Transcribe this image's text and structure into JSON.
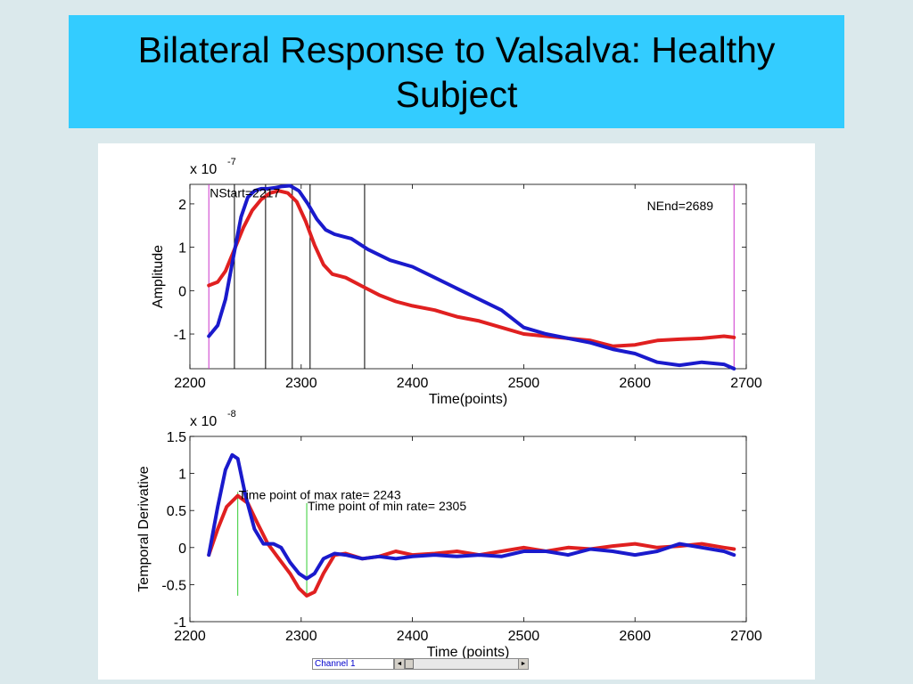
{
  "slide": {
    "title": "Bilateral Response to Valsalva: Healthy Subject"
  },
  "colors": {
    "background": "#dbe9ec",
    "title_band": "#33ccff",
    "left_series": "#e02020",
    "right_series": "#1a1acc",
    "marker_magenta": "#cc33cc",
    "marker_green": "#33cc33"
  },
  "controls": {
    "channel_label": "Channel 1",
    "left_arrow": "◄",
    "right_arrow": "►"
  },
  "chart_data": [
    {
      "type": "line",
      "xlabel": "Time(points)",
      "ylabel": "Amplitude",
      "scale_label": "x 10",
      "scale_exponent": "-7",
      "xlim": [
        2200,
        2700
      ],
      "ylim": [
        -1.8,
        2.45
      ],
      "xticks": [
        2200,
        2300,
        2400,
        2500,
        2600,
        2700
      ],
      "yticks": [
        -1,
        0,
        1,
        2
      ],
      "grid": false,
      "annotations": [
        {
          "text": "NStart=2217",
          "x": 2217,
          "y": 2.15
        },
        {
          "text": "NEnd=2689",
          "x": 2610,
          "y": 1.85
        }
      ],
      "vlines": [
        {
          "x": 2217,
          "color": "magenta"
        },
        {
          "x": 2689,
          "color": "magenta"
        },
        {
          "x": 2240,
          "color": "black"
        },
        {
          "x": 2268,
          "color": "black"
        },
        {
          "x": 2292,
          "color": "black"
        },
        {
          "x": 2308,
          "color": "black"
        },
        {
          "x": 2357,
          "color": "black"
        }
      ],
      "series": [
        {
          "color": "red",
          "x": [
            2217,
            2225,
            2232,
            2240,
            2248,
            2256,
            2264,
            2272,
            2280,
            2288,
            2296,
            2304,
            2312,
            2320,
            2328,
            2340,
            2355,
            2370,
            2385,
            2400,
            2420,
            2440,
            2460,
            2480,
            2500,
            2520,
            2540,
            2560,
            2580,
            2600,
            2620,
            2640,
            2660,
            2680,
            2689
          ],
          "y": [
            0.12,
            0.2,
            0.45,
            0.95,
            1.45,
            1.85,
            2.1,
            2.25,
            2.3,
            2.25,
            2.05,
            1.6,
            1.05,
            0.6,
            0.38,
            0.3,
            0.1,
            -0.1,
            -0.25,
            -0.35,
            -0.45,
            -0.6,
            -0.7,
            -0.85,
            -1.0,
            -1.05,
            -1.1,
            -1.15,
            -1.28,
            -1.25,
            -1.15,
            -1.12,
            -1.1,
            -1.05,
            -1.08
          ]
        },
        {
          "color": "blue",
          "x": [
            2217,
            2225,
            2232,
            2240,
            2246,
            2252,
            2258,
            2264,
            2270,
            2276,
            2282,
            2290,
            2298,
            2306,
            2314,
            2322,
            2330,
            2345,
            2360,
            2380,
            2400,
            2420,
            2440,
            2460,
            2480,
            2500,
            2520,
            2540,
            2560,
            2580,
            2600,
            2620,
            2640,
            2660,
            2680,
            2689
          ],
          "y": [
            -1.05,
            -0.8,
            -0.2,
            0.9,
            1.7,
            2.15,
            2.3,
            2.35,
            2.35,
            2.37,
            2.4,
            2.42,
            2.3,
            2.0,
            1.65,
            1.4,
            1.3,
            1.2,
            0.95,
            0.7,
            0.55,
            0.3,
            0.05,
            -0.2,
            -0.45,
            -0.85,
            -1.0,
            -1.1,
            -1.2,
            -1.35,
            -1.45,
            -1.65,
            -1.72,
            -1.65,
            -1.7,
            -1.8
          ]
        }
      ]
    },
    {
      "type": "line",
      "xlabel": "Time (points)",
      "ylabel": "Temporal Derivative",
      "scale_label": "x 10",
      "scale_exponent": "-8",
      "xlim": [
        2200,
        2700
      ],
      "ylim": [
        -1,
        1.5
      ],
      "xticks": [
        2200,
        2300,
        2400,
        2500,
        2600,
        2700
      ],
      "yticks": [
        -1,
        -0.5,
        0,
        0.5,
        1,
        1.5
      ],
      "grid": false,
      "annotations": [
        {
          "text": "Time point of max rate= 2243",
          "x": 2243,
          "y": 0.65
        },
        {
          "text": "Time point of min rate= 2305",
          "x": 2305,
          "y": 0.5
        }
      ],
      "vlines": [
        {
          "x": 2243,
          "color": "green",
          "y0": -0.65,
          "y1": 0.75
        },
        {
          "x": 2305,
          "color": "green",
          "y0": -0.65,
          "y1": 0.6
        }
      ],
      "series": [
        {
          "color": "red",
          "x": [
            2217,
            2225,
            2233,
            2243,
            2252,
            2260,
            2270,
            2280,
            2290,
            2298,
            2305,
            2312,
            2320,
            2330,
            2340,
            2355,
            2370,
            2385,
            2400,
            2420,
            2440,
            2460,
            2480,
            2500,
            2520,
            2540,
            2560,
            2580,
            2600,
            2620,
            2640,
            2660,
            2680,
            2689
          ],
          "y": [
            -0.1,
            0.25,
            0.55,
            0.7,
            0.6,
            0.35,
            0.05,
            -0.15,
            -0.35,
            -0.55,
            -0.65,
            -0.6,
            -0.35,
            -0.1,
            -0.08,
            -0.15,
            -0.12,
            -0.05,
            -0.1,
            -0.08,
            -0.05,
            -0.1,
            -0.05,
            0.0,
            -0.05,
            0.0,
            -0.02,
            0.02,
            0.05,
            0.0,
            0.02,
            0.05,
            0.0,
            -0.02
          ]
        },
        {
          "color": "blue",
          "x": [
            2217,
            2225,
            2232,
            2238,
            2243,
            2250,
            2258,
            2266,
            2275,
            2282,
            2290,
            2298,
            2305,
            2312,
            2320,
            2330,
            2340,
            2355,
            2370,
            2385,
            2400,
            2420,
            2440,
            2460,
            2480,
            2500,
            2520,
            2540,
            2560,
            2580,
            2600,
            2620,
            2640,
            2660,
            2680,
            2689
          ],
          "y": [
            -0.1,
            0.55,
            1.05,
            1.25,
            1.2,
            0.7,
            0.25,
            0.05,
            0.05,
            0.0,
            -0.2,
            -0.35,
            -0.42,
            -0.35,
            -0.15,
            -0.08,
            -0.1,
            -0.15,
            -0.12,
            -0.15,
            -0.12,
            -0.1,
            -0.12,
            -0.1,
            -0.12,
            -0.05,
            -0.05,
            -0.1,
            -0.02,
            -0.05,
            -0.1,
            -0.05,
            0.05,
            0.0,
            -0.05,
            -0.1
          ]
        }
      ]
    }
  ]
}
